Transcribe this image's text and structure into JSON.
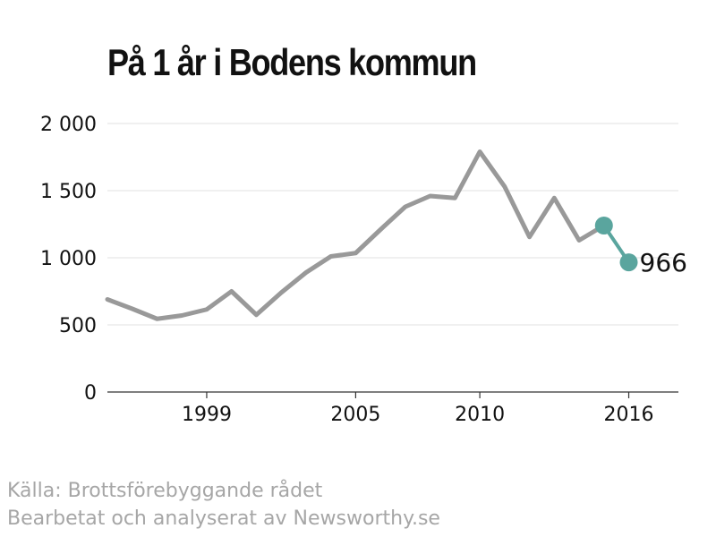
{
  "chart_data": {
    "type": "line",
    "title": "På 1 år i Bodens kommun",
    "x": [
      1995,
      1996,
      1997,
      1998,
      1999,
      2000,
      2001,
      2002,
      2003,
      2004,
      2005,
      2006,
      2007,
      2008,
      2009,
      2010,
      2011,
      2012,
      2013,
      2014,
      2015,
      2016
    ],
    "series": [
      {
        "values": [
          690,
          620,
          545,
          570,
          615,
          750,
          575,
          740,
          890,
          1010,
          1035,
          1210,
          1380,
          1460,
          1445,
          1790,
          1530,
          1155,
          1445,
          1130,
          1240,
          966
        ],
        "color": "#999999",
        "highlight_from_index": 20,
        "highlight_color": "#5aa59e"
      }
    ],
    "end_label": "966",
    "xlim": [
      1995,
      2018
    ],
    "ylim": [
      0,
      2000
    ],
    "x_ticks": [
      1999,
      2005,
      2010,
      2016
    ],
    "x_tick_labels": [
      "1999",
      "2005",
      "2010",
      "2016"
    ],
    "y_ticks": [
      0,
      500,
      1000,
      1500,
      2000
    ],
    "y_tick_labels": [
      "0",
      "500",
      "1 000",
      "1 500",
      "2 000"
    ],
    "xlabel": "",
    "ylabel": "",
    "grid": true,
    "grid_color": "#e2e2e2"
  },
  "source_lines": {
    "line1": "Källa: Brottsförebyggande rådet",
    "line2": "Bearbetat och analyserat av Newsworthy.se"
  }
}
